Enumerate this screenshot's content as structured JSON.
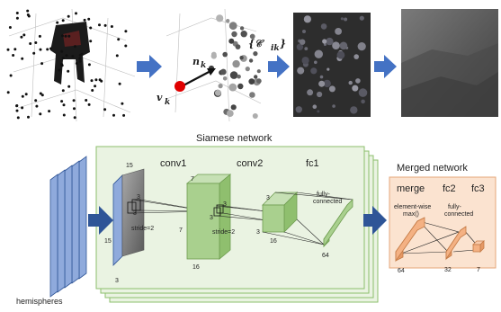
{
  "diagram": {
    "top_row": {
      "normal_label": "n",
      "normal_sub": "k",
      "view_label": "v",
      "view_sub": "k",
      "cluster_label": "{𝒞",
      "cluster_sub": "ik",
      "cluster_close": "}"
    },
    "siamese": {
      "title": "Siamese network",
      "layers": {
        "conv1": "conv1",
        "conv2": "conv2",
        "fc1": "fc1"
      },
      "input_size": "15",
      "input_size_side": "15",
      "input_depth": "3",
      "kernel1_a": "3",
      "kernel1_b": "3",
      "stride1": "stride=2",
      "conv1_h": "7",
      "conv1_w": "7",
      "conv1_d": "16",
      "kernel2_a": "3",
      "kernel2_b": "3",
      "stride2": "stride=2",
      "conv2_h": "3",
      "conv2_w": "3",
      "conv2_d": "16",
      "fc_label_1": "fully-",
      "fc_label_2": "connected",
      "fc1_size": "64"
    },
    "input_label": "hemispheres",
    "merged": {
      "title": "Merged network",
      "layers": {
        "merge": "merge",
        "fc2": "fc2",
        "fc3": "fc3"
      },
      "merge_label_1": "element-wise",
      "merge_label_2": "max()",
      "fc_label_1": "fully-",
      "fc_label_2": "connected",
      "merge_size": "64",
      "fc2_size": "32",
      "fc3_size": "7"
    },
    "colors": {
      "siamese_bg": "#eaf3e2",
      "siamese_border": "#8cbf6c",
      "merged_bg": "#fbe3d0",
      "merged_border": "#e4a77a",
      "arrow": "#2f5597",
      "green_block": "#a9d08e",
      "orange_block": "#f4b183",
      "blue_block": "#8faadc"
    }
  }
}
